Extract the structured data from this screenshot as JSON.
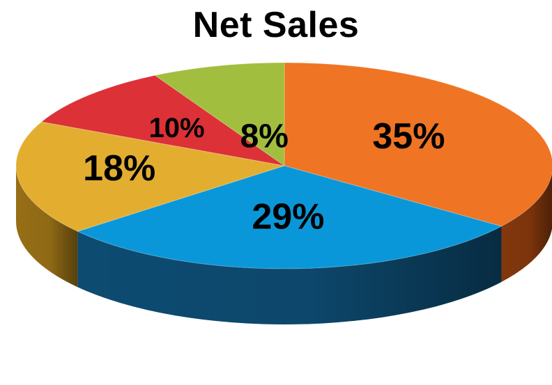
{
  "chart_data": {
    "type": "pie",
    "title": "Net Sales",
    "style": "3d",
    "slices": [
      {
        "label": "35%",
        "value": 35,
        "color": "#EF7423",
        "side_color": "#8A3A0D"
      },
      {
        "label": "29%",
        "value": 29,
        "color": "#0A97D9",
        "side_color": "#0E4F77"
      },
      {
        "label": "18%",
        "value": 18,
        "color": "#E3AE2F",
        "side_color": "#9E7417"
      },
      {
        "label": "10%",
        "value": 10,
        "color": "#DC3137",
        "side_color": "#8C1C20"
      },
      {
        "label": "8%",
        "value": 8,
        "color": "#A2BE3E",
        "side_color": "#617628"
      }
    ],
    "legend": "none"
  }
}
